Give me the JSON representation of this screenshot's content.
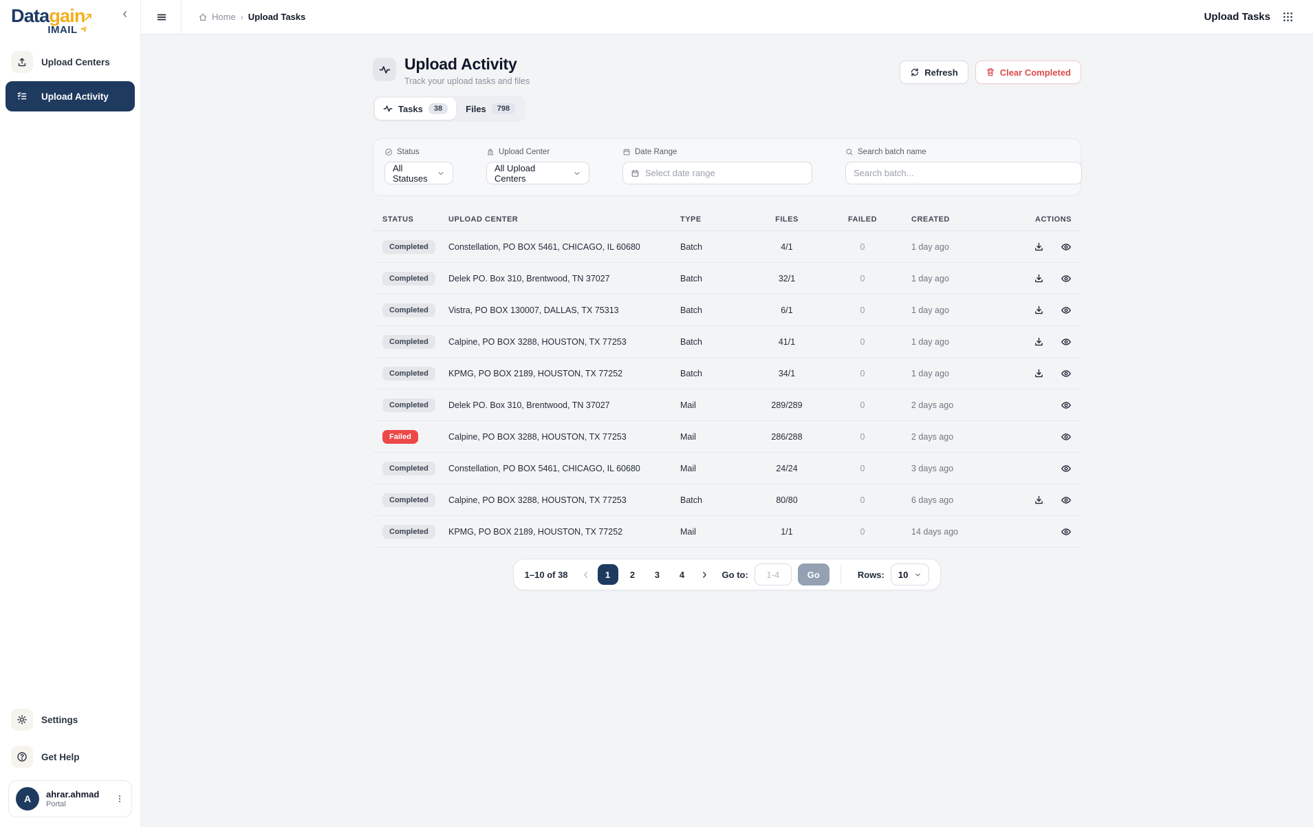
{
  "brand": {
    "logo_primary": "Data",
    "logo_accent": "gain",
    "logo_sub": "IMAIL"
  },
  "sidebar": {
    "items": [
      {
        "label": "Upload Centers"
      },
      {
        "label": "Upload Activity"
      }
    ],
    "settings_label": "Settings",
    "help_label": "Get Help",
    "user": {
      "initial": "A",
      "name": "ahrar.ahmad",
      "role": "Portal"
    }
  },
  "topbar": {
    "breadcrumb": {
      "home": "Home",
      "separator": "›",
      "current": "Upload Tasks"
    },
    "app_title": "Upload Tasks"
  },
  "header": {
    "title": "Upload Activity",
    "subtitle": "Track your upload tasks and files",
    "refresh_label": "Refresh",
    "clear_label": "Clear Completed"
  },
  "tabs": [
    {
      "label": "Tasks",
      "count": "38",
      "active": true
    },
    {
      "label": "Files",
      "count": "798",
      "active": false
    }
  ],
  "filters": {
    "status": {
      "label": "Status",
      "value": "All Statuses"
    },
    "center": {
      "label": "Upload Center",
      "value": "All Upload Centers"
    },
    "date": {
      "label": "Date Range",
      "placeholder": "Select date range"
    },
    "search": {
      "label": "Search batch name",
      "placeholder": "Search batch..."
    }
  },
  "table": {
    "columns": [
      "STATUS",
      "UPLOAD CENTER",
      "TYPE",
      "FILES",
      "FAILED",
      "CREATED",
      "ACTIONS"
    ],
    "rows": [
      {
        "status": "Completed",
        "center": "Constellation, PO BOX 5461, CHICAGO, IL 60680",
        "type": "Batch",
        "files": "4/1",
        "failed": "0",
        "created": "1 day ago",
        "download": true
      },
      {
        "status": "Completed",
        "center": "Delek PO. Box 310, Brentwood, TN 37027",
        "type": "Batch",
        "files": "32/1",
        "failed": "0",
        "created": "1 day ago",
        "download": true
      },
      {
        "status": "Completed",
        "center": "Vistra, PO BOX 130007, DALLAS, TX 75313",
        "type": "Batch",
        "files": "6/1",
        "failed": "0",
        "created": "1 day ago",
        "download": true
      },
      {
        "status": "Completed",
        "center": "Calpine, PO BOX 3288, HOUSTON, TX 77253",
        "type": "Batch",
        "files": "41/1",
        "failed": "0",
        "created": "1 day ago",
        "download": true
      },
      {
        "status": "Completed",
        "center": "KPMG, PO BOX 2189, HOUSTON, TX 77252",
        "type": "Batch",
        "files": "34/1",
        "failed": "0",
        "created": "1 day ago",
        "download": true
      },
      {
        "status": "Completed",
        "center": "Delek PO. Box 310, Brentwood, TN 37027",
        "type": "Mail",
        "files": "289/289",
        "failed": "0",
        "created": "2 days ago",
        "download": false
      },
      {
        "status": "Failed",
        "center": "Calpine, PO BOX 3288, HOUSTON, TX 77253",
        "type": "Mail",
        "files": "286/288",
        "failed": "0",
        "created": "2 days ago",
        "download": false
      },
      {
        "status": "Completed",
        "center": "Constellation, PO BOX 5461, CHICAGO, IL 60680",
        "type": "Mail",
        "files": "24/24",
        "failed": "0",
        "created": "3 days ago",
        "download": false
      },
      {
        "status": "Completed",
        "center": "Calpine, PO BOX 3288, HOUSTON, TX 77253",
        "type": "Batch",
        "files": "80/80",
        "failed": "0",
        "created": "6 days ago",
        "download": true
      },
      {
        "status": "Completed",
        "center": "KPMG, PO BOX 2189, HOUSTON, TX 77252",
        "type": "Mail",
        "files": "1/1",
        "failed": "0",
        "created": "14 days ago",
        "download": false
      }
    ]
  },
  "pagination": {
    "range": "1–10 of 38",
    "pages": [
      "1",
      "2",
      "3",
      "4"
    ],
    "active_page": "1",
    "goto_label": "Go to:",
    "goto_placeholder": "1-4",
    "go_label": "Go",
    "rows_label": "Rows:",
    "rows_value": "10"
  },
  "colors": {
    "navy": "#1e3a5f",
    "accent_yellow": "#f2b01e",
    "failed_red": "#ee4747",
    "danger_text": "#dd4b4b",
    "page_bg": "#f3f4f6"
  }
}
